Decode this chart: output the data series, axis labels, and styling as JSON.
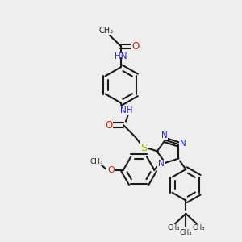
{
  "bg_color": "#eeeeee",
  "bond_color": "#1a1a1a",
  "N_color": "#2222cc",
  "O_color": "#cc2200",
  "S_color": "#aaaa00",
  "lw": 1.5,
  "fs": 7.5,
  "fig_w": 3.0,
  "fig_h": 3.0,
  "dpi": 100,
  "xlim": [
    0,
    10
  ],
  "ylim": [
    0,
    10
  ]
}
